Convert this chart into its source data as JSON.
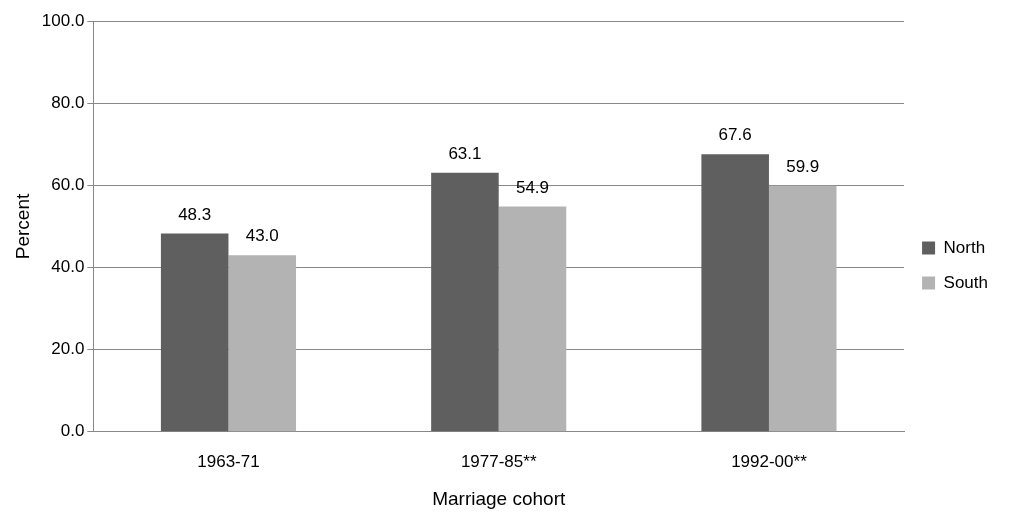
{
  "chart_data": {
    "type": "bar",
    "xlabel": "Marriage cohort",
    "ylabel": "Percent",
    "categories": [
      "1963-71",
      "1977-85**",
      "1992-00**"
    ],
    "series": [
      {
        "name": "North",
        "color": "#5f5f5f",
        "values": [
          48.3,
          63.1,
          67.6
        ],
        "value_labels": [
          "48.3",
          "63.1",
          "67.6"
        ]
      },
      {
        "name": "South",
        "color": "#b3b3b3",
        "values": [
          43.0,
          54.9,
          59.9
        ],
        "value_labels": [
          "43.0",
          "54.9",
          "59.9"
        ]
      }
    ],
    "ylim": [
      0,
      100
    ],
    "yticks": [
      {
        "value": 0,
        "label": "0.0"
      },
      {
        "value": 20,
        "label": "20.0"
      },
      {
        "value": 40,
        "label": "40.0"
      },
      {
        "value": 60,
        "label": "60.0"
      },
      {
        "value": 80,
        "label": "80.0"
      },
      {
        "value": 100,
        "label": "100.0"
      }
    ],
    "grid": "y",
    "legend": "right"
  }
}
